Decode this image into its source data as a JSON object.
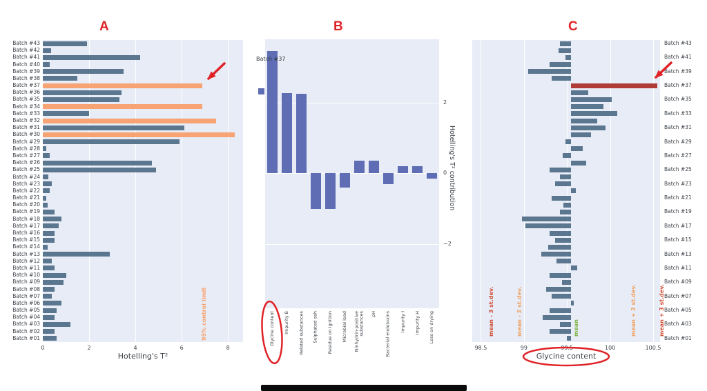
{
  "figure": {
    "panel_background": "#e7ecf6",
    "grid_color": "#ffffff",
    "annotation_color": "#e02227",
    "panel_letters": [
      "A",
      "B",
      "C"
    ]
  },
  "chart_data": [
    {
      "id": "hotellings-t2-by-batch",
      "panel_letter": "A",
      "type": "bar",
      "orientation": "horizontal",
      "xlabel": "Hotelling's T²",
      "xlim": [
        0,
        8.65
      ],
      "grid": true,
      "xticks": [
        {
          "v": 0,
          "label": "0"
        },
        {
          "v": 2,
          "label": "2"
        },
        {
          "v": 4,
          "label": "4"
        },
        {
          "v": 6,
          "label": "6"
        },
        {
          "v": 8,
          "label": "8"
        }
      ],
      "bar_color": "#5b768f",
      "outlier_color": "#f7a374",
      "control_limit": {
        "value": 6.7,
        "label": "95% control limit",
        "color": "#f9a26d",
        "style": "dashed"
      },
      "categories": [
        "Batch #43",
        "Batch #42",
        "Batch #41",
        "Batch #40",
        "Batch #39",
        "Batch #38",
        "Batch #37",
        "Batch #36",
        "Batch #35",
        "Batch #34",
        "Batch #33",
        "Batch #32",
        "Batch #31",
        "Batch #30",
        "Batch #29",
        "Batch #28",
        "Batch #27",
        "Batch #26",
        "Batch #25",
        "Batch #24",
        "Batch #23",
        "Batch #22",
        "Batch #21",
        "Batch #20",
        "Batch #19",
        "Batch #18",
        "Batch #17",
        "Batch #16",
        "Batch #15",
        "Batch #14",
        "Batch #13",
        "Batch #12",
        "Batch #11",
        "Batch #10",
        "Batch #09",
        "Batch #08",
        "Batch #07",
        "Batch #06",
        "Batch #05",
        "Batch #04",
        "Batch #03",
        "Batch #02",
        "Batch #01"
      ],
      "values": [
        1.9,
        0.35,
        4.2,
        0.3,
        3.5,
        1.5,
        6.9,
        3.4,
        3.3,
        6.9,
        2.0,
        7.5,
        6.1,
        8.3,
        5.9,
        0.15,
        0.3,
        4.7,
        4.9,
        0.25,
        0.4,
        0.3,
        0.15,
        0.2,
        0.5,
        0.8,
        0.7,
        0.5,
        0.5,
        0.2,
        2.9,
        0.4,
        0.5,
        1.0,
        0.9,
        0.5,
        0.4,
        0.8,
        0.6,
        0.5,
        1.2,
        0.5,
        0.6
      ],
      "outliers": [
        "Batch #37",
        "Batch #34",
        "Batch #32",
        "Batch #30"
      ],
      "arrow_target": "Batch #37"
    },
    {
      "id": "t2-contribution-batch-37",
      "panel_letter": "B",
      "type": "bar",
      "orientation": "vertical",
      "legend": {
        "label": "Batch #37",
        "color": "#5e6db4",
        "position": "upper-left"
      },
      "ylabel": "Hotelling's T² contribution",
      "ylabel_side": "right",
      "ylim": [
        -3.8,
        3.78
      ],
      "grid": true,
      "yticks": [
        {
          "v": 2,
          "label": "2"
        },
        {
          "v": 0,
          "label": "0"
        },
        {
          "v": -2,
          "label": "−2"
        }
      ],
      "bar_color": "#5e6db4",
      "categories": [
        "Glycine content",
        "Impurity B",
        "Related substances",
        "Sulphated ash",
        "Residue on ignition",
        "Microbial load",
        "Ninhydrin-positive\nsubstances",
        "pH",
        "Bacterial endotoxins",
        "Impurity I",
        "Impurity H",
        "Loss on drying"
      ],
      "values": [
        3.45,
        2.27,
        2.25,
        -1.0,
        -1.0,
        -0.4,
        0.35,
        0.35,
        -0.3,
        0.2,
        0.2,
        -0.15
      ],
      "circled_category": "Glycine content"
    },
    {
      "id": "glycine-content-by-batch",
      "panel_letter": "C",
      "type": "bar",
      "orientation": "horizontal",
      "xlabel": "Glycine content",
      "xlabel_circled": true,
      "xlim": [
        98.4,
        100.58
      ],
      "grid": true,
      "xticks": [
        {
          "v": 98.5,
          "label": "98.5"
        },
        {
          "v": 99,
          "label": "99"
        },
        {
          "v": 99.5,
          "label": "99.5"
        },
        {
          "v": 100,
          "label": "100"
        },
        {
          "v": 100.5,
          "label": "100.5"
        }
      ],
      "baseline": 99.55,
      "bar_color": "#5b768f",
      "highlight": {
        "category": "Batch #37",
        "color": "#b03a36"
      },
      "reference_lines": [
        {
          "value": 98.56,
          "label": "mean - 3 st.dev.",
          "color": "#d05038",
          "style": "dotted"
        },
        {
          "value": 98.89,
          "label": "mean - 2 st.dev.",
          "color": "#f0a264",
          "style": "dotted"
        },
        {
          "value": 99.55,
          "label": "mean",
          "color": "#7cb342",
          "style": "dashed"
        },
        {
          "value": 100.21,
          "label": "mean + 2 st.dev.",
          "color": "#f0a264",
          "style": "dotted"
        },
        {
          "value": 100.54,
          "label": "mean + 3 st.dev.",
          "color": "#d05038",
          "style": "dotted"
        }
      ],
      "categories": [
        "Batch #43",
        "Batch #42",
        "Batch #41",
        "Batch #40",
        "Batch #39",
        "Batch #38",
        "Batch #37",
        "Batch #36",
        "Batch #35",
        "Batch #34",
        "Batch #33",
        "Batch #32",
        "Batch #31",
        "Batch #30",
        "Batch #29",
        "Batch #28",
        "Batch #27",
        "Batch #26",
        "Batch #25",
        "Batch #24",
        "Batch #23",
        "Batch #22",
        "Batch #21",
        "Batch #20",
        "Batch #19",
        "Batch #18",
        "Batch #17",
        "Batch #16",
        "Batch #15",
        "Batch #14",
        "Batch #13",
        "Batch #12",
        "Batch #11",
        "Batch #10",
        "Batch #09",
        "Batch #08",
        "Batch #07",
        "Batch #06",
        "Batch #05",
        "Batch #04",
        "Batch #03",
        "Batch #02",
        "Batch #01"
      ],
      "values": [
        99.42,
        99.4,
        99.48,
        99.3,
        99.05,
        99.32,
        100.55,
        99.75,
        100.02,
        99.92,
        100.08,
        99.85,
        99.95,
        99.78,
        99.48,
        99.68,
        99.45,
        99.72,
        99.3,
        99.42,
        99.36,
        99.6,
        99.32,
        99.46,
        99.42,
        98.98,
        99.02,
        99.3,
        99.36,
        99.28,
        99.2,
        99.38,
        99.62,
        99.3,
        99.44,
        99.26,
        99.32,
        99.58,
        99.3,
        99.22,
        99.42,
        99.3,
        99.5
      ],
      "labeled_categories": [
        "Batch #43",
        "Batch #41",
        "Batch #39",
        "Batch #37",
        "Batch #35",
        "Batch #33",
        "Batch #31",
        "Batch #29",
        "Batch #27",
        "Batch #25",
        "Batch #23",
        "Batch #21",
        "Batch #19",
        "Batch #17",
        "Batch #15",
        "Batch #13",
        "Batch #11",
        "Batch #09",
        "Batch #07",
        "Batch #05",
        "Batch #03",
        "Batch #01"
      ],
      "arrow_target": "Batch #37"
    }
  ]
}
